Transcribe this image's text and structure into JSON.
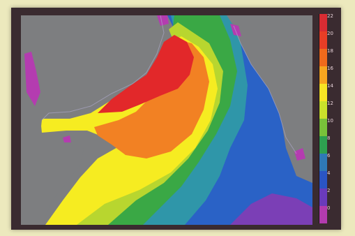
{
  "map": {
    "land_color": "#7d7e80",
    "coast_color": "#b2aed0"
  },
  "colorbar": {
    "ticks": [
      "22",
      "20",
      "18",
      "16",
      "14",
      "12",
      "10",
      "8",
      "6",
      "4",
      "2",
      "0"
    ],
    "colors": [
      "#d82c33",
      "#e83e26",
      "#f06a1c",
      "#f7a51f",
      "#f7e424",
      "#c9e12b",
      "#79c13a",
      "#2ea050",
      "#2f79b6",
      "#2a55c4",
      "#6a3bbb",
      "#b23bae"
    ]
  },
  "colors": {
    "red": "#e2282a",
    "orange": "#f28123",
    "yellow": "#f6ec21",
    "yellow_green": "#b8d62f",
    "green": "#3aa845",
    "teal": "#2f96a9",
    "blue": "#2a62c6",
    "violet": "#7b3fb6",
    "magenta": "#b43cb0"
  }
}
